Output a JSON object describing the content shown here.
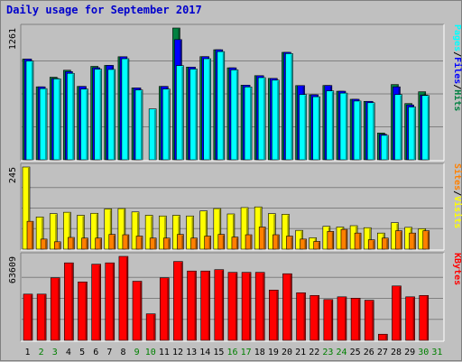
{
  "chart_data": {
    "type": "bar",
    "title": "Daily usage for September 2017",
    "categories": [
      "1",
      "2",
      "3",
      "4",
      "5",
      "6",
      "7",
      "8",
      "9",
      "10",
      "11",
      "12",
      "13",
      "14",
      "15",
      "16",
      "17",
      "18",
      "19",
      "20",
      "21",
      "22",
      "23",
      "24",
      "25",
      "26",
      "27",
      "28",
      "29",
      "30",
      "31"
    ],
    "weekend_days": [
      "2",
      "3",
      "9",
      "10",
      "16",
      "17",
      "23",
      "24",
      "30",
      "31"
    ],
    "colors": {
      "hits": "#008040",
      "files": "#0000ff",
      "pages": "#00ffff",
      "visits": "#ffff00",
      "sites": "#ff8000",
      "kbytes": "#ff0000",
      "weekday_label": "#000000",
      "weekend_label": "#008000"
    },
    "panels": [
      {
        "key": "traffic",
        "max_label": "1261",
        "ymax": 1261,
        "legend": [
          {
            "text": "Hits",
            "color": "#008040"
          },
          {
            "text": "Files",
            "color": "#0000ff"
          },
          {
            "text": "Pages",
            "color": "#00ffff"
          }
        ],
        "series": [
          {
            "name": "Hits",
            "color": "#008040",
            "values": [
              964,
              698,
              790,
              857,
              702,
              894,
              903,
              986,
              688,
              0,
              702,
              1261,
              887,
              987,
              1053,
              880,
              714,
              805,
              779,
              1028,
              710,
              622,
              711,
              656,
              579,
              559,
              256,
              720,
              538,
              651,
              0
            ]
          },
          {
            "name": "Files",
            "color": "#0000ff",
            "values": [
              964,
              698,
              778,
              844,
              702,
              881,
              903,
              986,
              688,
              0,
              702,
              1150,
              887,
              987,
              1053,
              880,
              714,
              805,
              779,
              1028,
              710,
              622,
              711,
              656,
              579,
              559,
              244,
              698,
              525,
              620,
              0
            ]
          },
          {
            "name": "Pages",
            "color": "#00ffff",
            "values": [
              945,
              681,
              774,
              827,
              677,
              867,
              864,
              967,
              668,
              487,
              677,
              901,
              868,
              967,
              1035,
              860,
              697,
              786,
              762,
              1016,
              624,
              603,
              659,
              638,
              562,
              546,
              234,
              624,
              505,
              615,
              0
            ]
          }
        ]
      },
      {
        "key": "visitors",
        "max_label": "245",
        "ymax": 245,
        "legend": [
          {
            "text": "Visits",
            "color": "#ffff00"
          },
          {
            "text": "Sites",
            "color": "#ff8000"
          }
        ],
        "series": [
          {
            "name": "Visits",
            "color": "#ffff00",
            "values": [
              245,
              96,
              106,
              110,
              101,
              107,
              120,
              121,
              111,
              101,
              99,
              101,
              99,
              114,
              121,
              105,
              124,
              126,
              106,
              104,
              56,
              34,
              68,
              66,
              70,
              64,
              48,
              79,
              65,
              61,
              0
            ]
          },
          {
            "name": "Sites",
            "color": "#ff8000",
            "values": [
              83,
              30,
              22,
              35,
              33,
              33,
              44,
              43,
              39,
              33,
              33,
              44,
              33,
              39,
              44,
              36,
              43,
              66,
              43,
              39,
              30,
              23,
              53,
              59,
              48,
              28,
              33,
              55,
              48,
              55,
              0
            ]
          }
        ]
      },
      {
        "key": "kbytes",
        "max_label": "63609",
        "ymax": 63609,
        "legend": [
          {
            "text": "KBytes",
            "color": "#ff0000"
          }
        ],
        "series": [
          {
            "name": "KBytes",
            "color": "#ff0000",
            "values": [
              35010,
              35010,
              47370,
              58700,
              44260,
              57670,
              58700,
              63609,
              44770,
              20050,
              47370,
              59730,
              52520,
              52520,
              53550,
              51490,
              51490,
              51490,
              38090,
              50460,
              36050,
              34000,
              30900,
              32950,
              31930,
              30380,
              4630,
              41190,
              32950,
              34000,
              0
            ]
          }
        ]
      }
    ]
  }
}
